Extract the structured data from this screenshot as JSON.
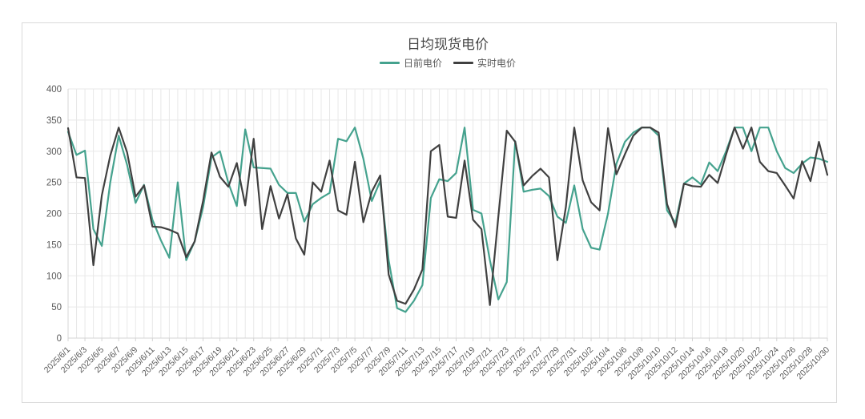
{
  "card": {
    "border_color": "#d9d9d9",
    "background": "#ffffff"
  },
  "axis": {
    "y_tick_labels": [
      "0",
      "50",
      "100",
      "150",
      "200",
      "250",
      "300",
      "350",
      "400"
    ],
    "label_color": "#595959",
    "grid_color": "#e8e8e8",
    "axis_line_color": "#d4d4d4"
  },
  "chart_data": {
    "type": "line",
    "title": "日均现货电价",
    "xlabel": "",
    "ylabel": "",
    "ylim": [
      0,
      400
    ],
    "y_tick_step": 50,
    "grid": true,
    "legend_position": "top",
    "x_labels_shown_every": 2,
    "categories": [
      "2025/6/1",
      "2025/6/2",
      "2025/6/3",
      "2025/6/4",
      "2025/6/5",
      "2025/6/6",
      "2025/6/7",
      "2025/6/8",
      "2025/6/9",
      "2025/6/10",
      "2025/6/11",
      "2025/6/12",
      "2025/6/13",
      "2025/6/14",
      "2025/6/15",
      "2025/6/16",
      "2025/6/17",
      "2025/6/18",
      "2025/6/19",
      "2025/6/20",
      "2025/6/21",
      "2025/6/22",
      "2025/6/23",
      "2025/6/24",
      "2025/6/25",
      "2025/6/26",
      "2025/6/27",
      "2025/6/28",
      "2025/6/29",
      "2025/6/30",
      "2025/7/1",
      "2025/7/2",
      "2025/7/3",
      "2025/7/4",
      "2025/7/5",
      "2025/7/6",
      "2025/7/7",
      "2025/7/8",
      "2025/7/9",
      "2025/7/10",
      "2025/7/11",
      "2025/7/12",
      "2025/7/13",
      "2025/7/14",
      "2025/7/15",
      "2025/7/16",
      "2025/7/17",
      "2025/7/18",
      "2025/7/19",
      "2025/7/20",
      "2025/7/21",
      "2025/7/22",
      "2025/7/23",
      "2025/7/24",
      "2025/7/25",
      "2025/7/26",
      "2025/7/27",
      "2025/7/28",
      "2025/7/29",
      "2025/7/30",
      "2025/7/31",
      "2025/10/1",
      "2025/10/2",
      "2025/10/3",
      "2025/10/4",
      "2025/10/5",
      "2025/10/6",
      "2025/10/7",
      "2025/10/8",
      "2025/10/9",
      "2025/10/10",
      "2025/10/11",
      "2025/10/12",
      "2025/10/13",
      "2025/10/14",
      "2025/10/15",
      "2025/10/16",
      "2025/10/17",
      "2025/10/18",
      "2025/10/19",
      "2025/10/20",
      "2025/10/21",
      "2025/10/22",
      "2025/10/23",
      "2025/10/24",
      "2025/10/25",
      "2025/10/26",
      "2025/10/27",
      "2025/10/28",
      "2025/10/29",
      "2025/10/30"
    ],
    "series": [
      {
        "name": "日前电价",
        "color": "#45a28e",
        "values": [
          331,
          294,
          301,
          175,
          148,
          250,
          325,
          278,
          217,
          246,
          190,
          157,
          129,
          250,
          125,
          155,
          210,
          290,
          300,
          249,
          212,
          335,
          274,
          273,
          272,
          246,
          233,
          233,
          187,
          215,
          225,
          233,
          320,
          316,
          338,
          288,
          220,
          252,
          125,
          48,
          42,
          60,
          85,
          225,
          255,
          252,
          265,
          338,
          206,
          200,
          125,
          62,
          90,
          316,
          235,
          238,
          240,
          228,
          195,
          185,
          245,
          175,
          145,
          142,
          200,
          280,
          315,
          330,
          338,
          338,
          325,
          205,
          185,
          248,
          258,
          247,
          282,
          268,
          300,
          338,
          338,
          300,
          338,
          338,
          300,
          273,
          265,
          280,
          290,
          288,
          283
        ]
      },
      {
        "name": "实时电价",
        "color": "#404040",
        "values": [
          337,
          258,
          257,
          117,
          229,
          293,
          338,
          298,
          227,
          245,
          179,
          178,
          174,
          168,
          130,
          155,
          220,
          298,
          259,
          243,
          281,
          213,
          320,
          175,
          244,
          192,
          231,
          160,
          134,
          250,
          235,
          285,
          205,
          198,
          283,
          186,
          235,
          261,
          102,
          60,
          55,
          78,
          110,
          300,
          310,
          195,
          193,
          285,
          190,
          175,
          53,
          195,
          333,
          315,
          245,
          260,
          272,
          258,
          125,
          210,
          338,
          253,
          218,
          205,
          337,
          263,
          295,
          325,
          338,
          338,
          330,
          215,
          178,
          248,
          244,
          243,
          262,
          249,
          295,
          338,
          304,
          338,
          283,
          268,
          265,
          245,
          224,
          284,
          252,
          315,
          262
        ]
      }
    ]
  }
}
